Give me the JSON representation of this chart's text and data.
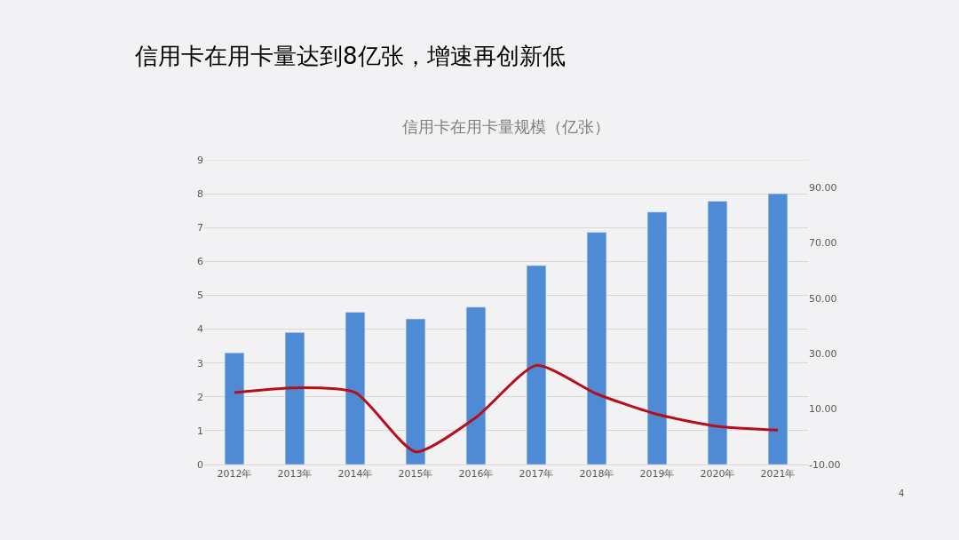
{
  "chart_data": {
    "type": "bar",
    "title": "信用卡在用卡量达到8亿张，增速再创新低",
    "subtitle": "信用卡在用卡量规模（亿张）",
    "categories": [
      "2012年",
      "2013年",
      "2014年",
      "2015年",
      "2016年",
      "2017年",
      "2018年",
      "2019年",
      "2020年",
      "2021年"
    ],
    "series": [
      {
        "color": "#4f8bd4",
        "values": [
          3.3,
          3.9,
          4.5,
          4.3,
          4.65,
          5.88,
          6.86,
          7.46,
          7.78,
          8.0
        ]
      },
      {
        "type": "line",
        "axis": "y2",
        "color": "#b5101a",
        "values": [
          16,
          17.7,
          16,
          -5.4,
          7,
          25.8,
          15.5,
          8.1,
          3.8,
          2.4
        ]
      }
    ],
    "ylim": [
      0,
      9
    ],
    "yticks": [
      0,
      1,
      2,
      3,
      4,
      5,
      6,
      7,
      8,
      9
    ],
    "y2lim": [
      -10,
      100
    ],
    "y2ticks": [
      {
        "value": -10,
        "label": "-10.00"
      },
      {
        "value": 10,
        "label": "10.00"
      },
      {
        "value": 30,
        "label": "30.00"
      },
      {
        "value": 50,
        "label": "50.00"
      },
      {
        "value": 70,
        "label": "70.00"
      },
      {
        "value": 90,
        "label": "90.00"
      }
    ],
    "grid": "y",
    "marker": "none",
    "line_style": "solid",
    "annotations": [
      "4"
    ]
  }
}
